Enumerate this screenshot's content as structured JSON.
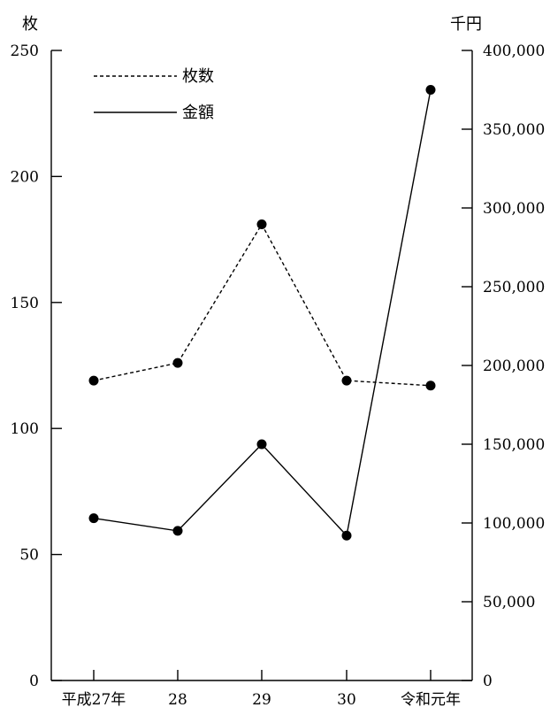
{
  "chart_data": {
    "type": "line",
    "categories": [
      "平成27年",
      "28",
      "29",
      "30",
      "令和元年"
    ],
    "y_left": {
      "unit": "枚",
      "range": [
        0,
        250
      ],
      "ticks": [
        0,
        50,
        100,
        150,
        200,
        250
      ],
      "tick_labels": [
        "0",
        "50",
        "100",
        "150",
        "200",
        "250"
      ]
    },
    "y_right": {
      "unit": "千円",
      "range": [
        0,
        400000
      ],
      "ticks": [
        0,
        50000,
        100000,
        150000,
        200000,
        250000,
        300000,
        350000,
        400000
      ],
      "tick_labels": [
        "0",
        "50,000",
        "100,000",
        "150,000",
        "200,000",
        "250,000",
        "300,000",
        "350,000",
        "400,000"
      ]
    },
    "series": [
      {
        "name": "枚数",
        "axis": "left",
        "line_style": "dashed",
        "values": [
          119,
          126,
          181,
          119,
          117
        ]
      },
      {
        "name": "金額",
        "axis": "right",
        "line_style": "solid",
        "values": [
          103000,
          95000,
          150000,
          92000,
          375000
        ]
      }
    ],
    "legend_position": "top-left",
    "grid": false
  }
}
